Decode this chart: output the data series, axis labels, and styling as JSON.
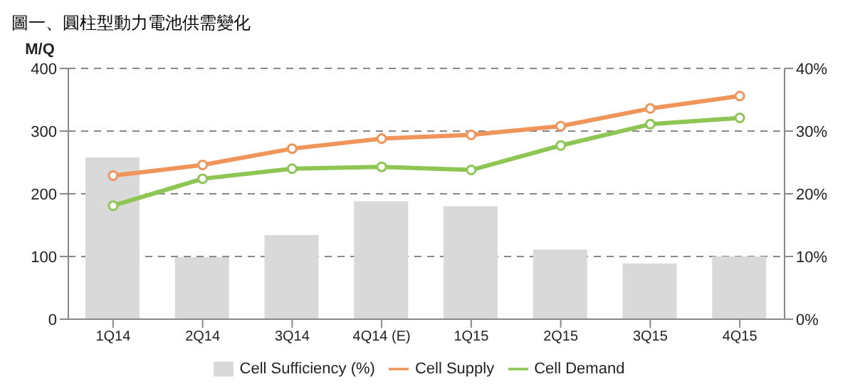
{
  "chart_data": {
    "type": "line",
    "title": "圖一、圓柱型動力電池供需變化",
    "ylabel": "M/Q",
    "categories": [
      "1Q14",
      "2Q14",
      "3Q14",
      "4Q14 (E)",
      "1Q15",
      "2Q15",
      "3Q15",
      "4Q15"
    ],
    "series": [
      {
        "name": "Cell Sufficiency (%)",
        "type": "bar",
        "axis": "y2",
        "color": "#d9d9d9",
        "values": [
          25.8,
          9.9,
          13.4,
          18.8,
          18,
          11.1,
          8.9,
          10
        ]
      },
      {
        "name": "Cell Supply",
        "color": "#f0955a",
        "values": [
          229,
          246,
          272,
          288,
          294,
          308,
          336,
          356
        ]
      },
      {
        "name": "Cell Demand",
        "color": "#8dc653",
        "values": [
          181,
          224,
          240,
          243,
          238,
          277,
          311,
          321
        ]
      }
    ],
    "ylim": [
      0,
      400
    ],
    "yticks": [
      0,
      100,
      200,
      300,
      400
    ],
    "y2lim": [
      0,
      40
    ],
    "y2ticks": [
      {
        "value": 0,
        "label": "0%"
      },
      {
        "value": 10,
        "label": "10%"
      },
      {
        "value": 20,
        "label": "20%"
      },
      {
        "value": 30,
        "label": "30%"
      },
      {
        "value": 40,
        "label": "40%"
      }
    ],
    "grid": "y",
    "legend": "bottom",
    "marker": "circle",
    "line_style": "solid"
  }
}
